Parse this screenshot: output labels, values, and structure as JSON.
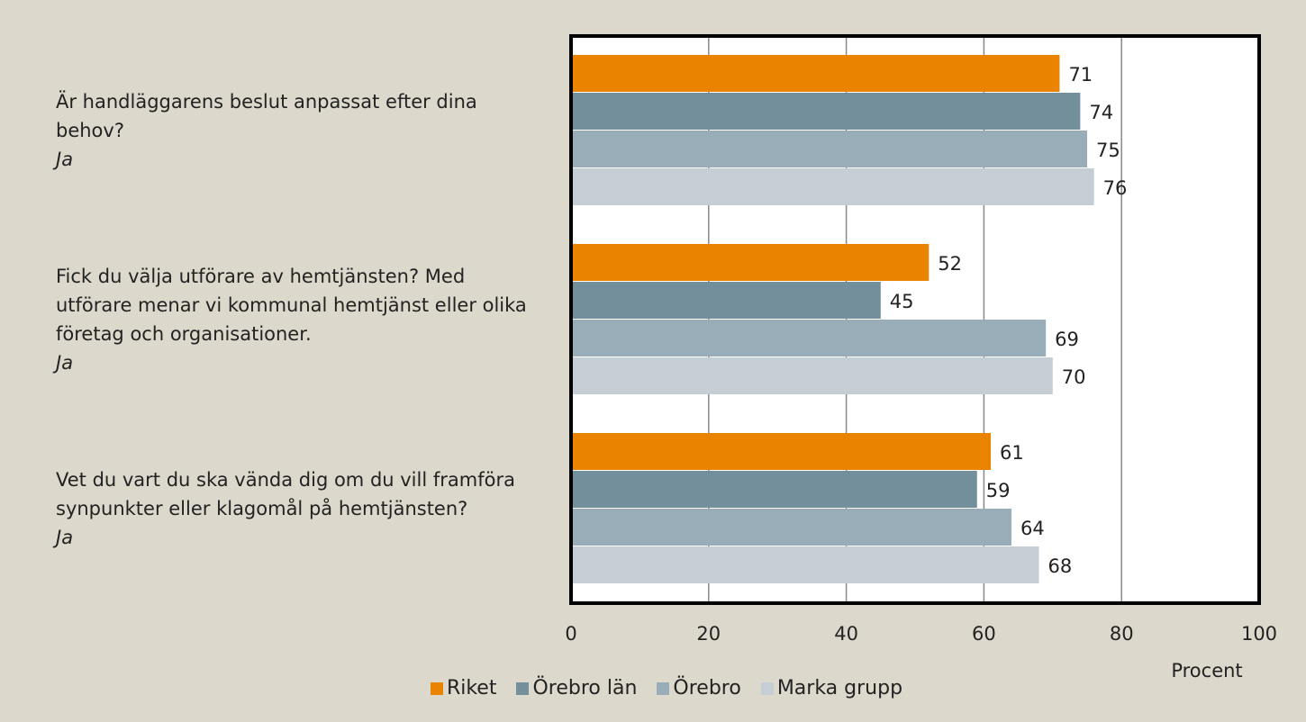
{
  "chart_data": {
    "type": "hbar",
    "categories": [
      "Är handläggarens beslut anpassat efter dina behov?",
      "Fick du välja utförare av hemtjänsten? Med utförare menar vi kommunal hemtjänst eller olika företag och organisationer.",
      "Vet du vart du ska vända dig om du vill framföra synpunkter eller klagomål på hemtjänsten?"
    ],
    "category_notes": [
      "Ja",
      "Ja",
      "Ja"
    ],
    "series": [
      {
        "name": "Riket",
        "color": "#e98300",
        "values": [
          71,
          52,
          61
        ]
      },
      {
        "name": "Örebro län",
        "color": "#738f9c",
        "values": [
          74,
          45,
          59
        ]
      },
      {
        "name": "Örebro",
        "color": "#99adb8",
        "values": [
          75,
          69,
          64
        ]
      },
      {
        "name": "Marka grupp",
        "color": "#c4ced4",
        "values": [
          76,
          70,
          68
        ]
      }
    ],
    "xlabel": "Procent",
    "xlim": [
      0,
      100
    ],
    "xticks": [
      0,
      20,
      40,
      60,
      80,
      100
    ],
    "grid": true
  }
}
